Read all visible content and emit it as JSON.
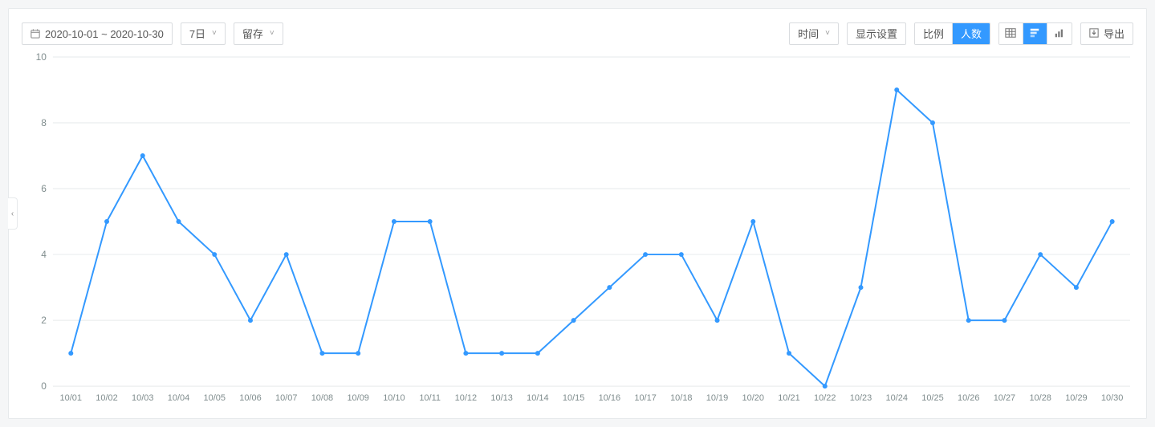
{
  "panel": {
    "background_color": "#ffffff",
    "border_color": "#e6e9eb"
  },
  "toolbar": {
    "date_range": "2020-10-01 ~ 2020-10-30",
    "period": "7日",
    "retention": "留存",
    "time_label": "时间",
    "display_setting": "显示设置",
    "ratio_label": "比例",
    "count_label": "人数",
    "export_label": "导出"
  },
  "chart": {
    "type": "line",
    "line_color": "#3399ff",
    "marker_color": "#3399ff",
    "marker_radius": 3,
    "line_width": 2,
    "background_color": "#ffffff",
    "grid_color": "#e6e9eb",
    "axis_text_color": "#7f8c8d",
    "ylim": [
      0,
      10
    ],
    "ytick_step": 2,
    "yticks": [
      0,
      2,
      4,
      6,
      8,
      10
    ],
    "categories": [
      "10/01",
      "10/02",
      "10/03",
      "10/04",
      "10/05",
      "10/06",
      "10/07",
      "10/08",
      "10/09",
      "10/10",
      "10/11",
      "10/12",
      "10/13",
      "10/14",
      "10/15",
      "10/16",
      "10/17",
      "10/18",
      "10/19",
      "10/20",
      "10/21",
      "10/22",
      "10/23",
      "10/24",
      "10/25",
      "10/26",
      "10/27",
      "10/28",
      "10/29",
      "10/30"
    ],
    "values": [
      1,
      5,
      7,
      5,
      4,
      2,
      4,
      1,
      1,
      5,
      5,
      1,
      1,
      1,
      2,
      3,
      4,
      4,
      2,
      5,
      1,
      0,
      3,
      9,
      8,
      2,
      2,
      4,
      3,
      5
    ],
    "label_fontsize": 12,
    "tick_fontsize": 11
  }
}
